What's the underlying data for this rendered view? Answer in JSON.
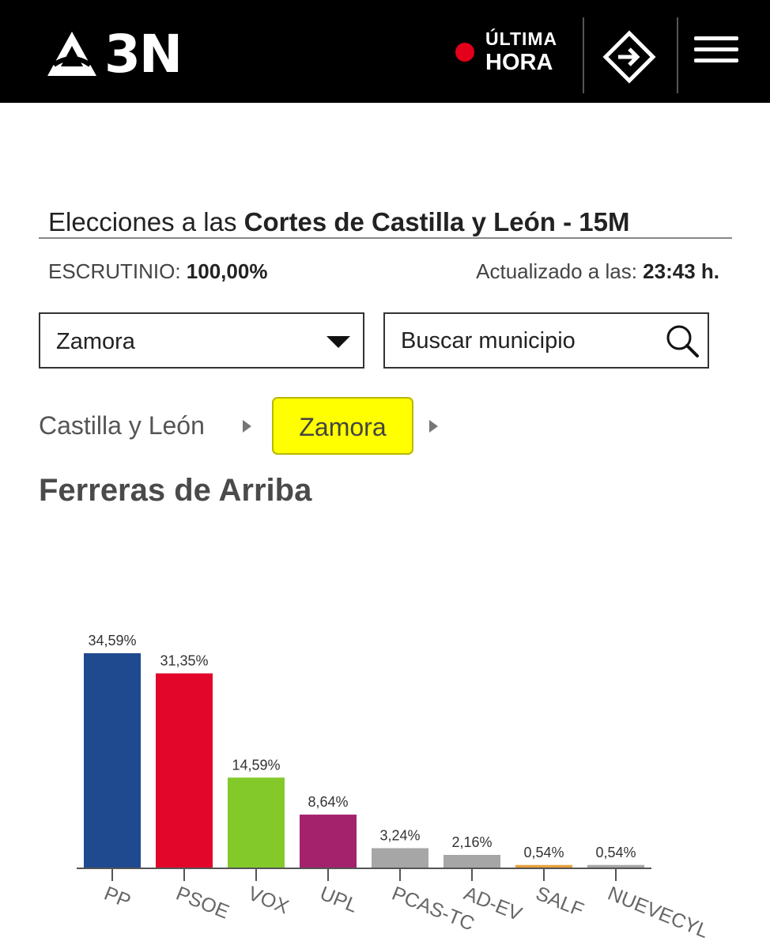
{
  "header": {
    "logo_text": "3N",
    "logo_icon": "antena3-triangle-icon",
    "live_line1": "ÚLTIMA",
    "live_line2": "HORA",
    "live_dot_color": "#e2001a",
    "direct_icon": "play-diamond-icon",
    "menu_icon": "hamburger-icon"
  },
  "election": {
    "title_prefix": "Elecciones a las ",
    "title_strong": "Cortes de Castilla y León - 15M",
    "scrutiny_label": "ESCRUTINIO: ",
    "scrutiny_value": "100,00%",
    "updated_label": "Actualizado a las: ",
    "updated_value": "23:43 h."
  },
  "filters": {
    "province_selected": "Zamora",
    "search_placeholder": "Buscar municipio"
  },
  "breadcrumb": {
    "region": "Castilla y León",
    "province": "Zamora",
    "highlight_color": "#ffff00"
  },
  "municipality": {
    "name": "Ferreras de Arriba"
  },
  "chart_data": {
    "type": "bar",
    "title": "",
    "xlabel": "",
    "ylabel": "",
    "ylim": [
      0,
      40
    ],
    "categories": [
      "PP",
      "PSOE",
      "VOX",
      "UPL",
      "PCAS-TC",
      "AD-EV",
      "SALF",
      "NUEVECYL"
    ],
    "values": [
      34.59,
      31.35,
      14.59,
      8.64,
      3.24,
      2.16,
      0.54,
      0.54
    ],
    "labels": [
      "34,59%",
      "31,35%",
      "14,59%",
      "8,64%",
      "3,24%",
      "2,16%",
      "0,54%",
      "0,54%"
    ],
    "colors": [
      "#1f4a8f",
      "#e3062b",
      "#83c92a",
      "#a3226b",
      "#a6a6a6",
      "#a6a6a6",
      "#e8a13c",
      "#a6a6a6"
    ]
  }
}
